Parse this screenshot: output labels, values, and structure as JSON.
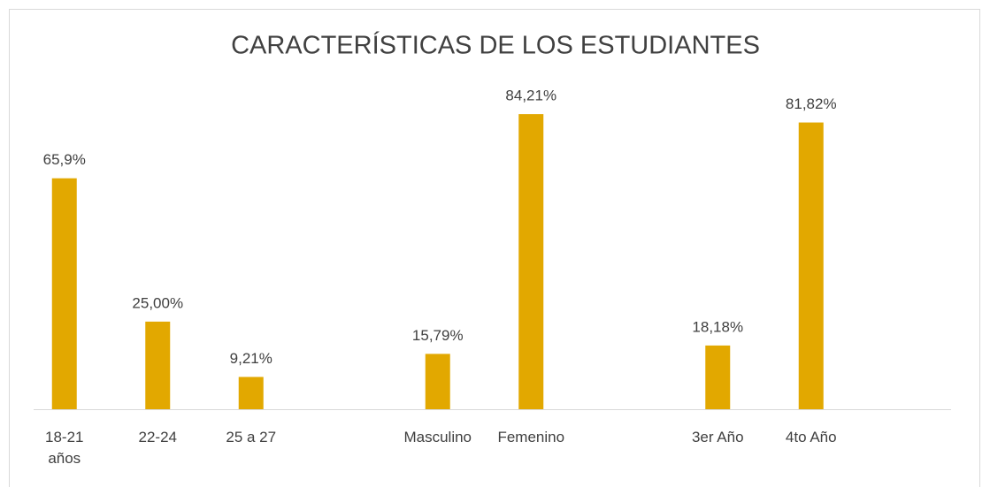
{
  "chart_data": {
    "type": "bar",
    "title": "CARACTERÍSTICAS DE LOS ESTUDIANTES",
    "categories": [
      "18-21 años",
      "22-24",
      "25 a 27",
      null,
      "Masculino",
      "Femenino",
      null,
      "3er Año",
      "4to Año",
      null
    ],
    "values": [
      65.9,
      25.0,
      9.21,
      null,
      15.79,
      84.21,
      null,
      18.18,
      81.82,
      null
    ],
    "value_labels": [
      "65,9%",
      "25,00%",
      "9,21%",
      null,
      "15,79%",
      "84,21%",
      null,
      "18,18%",
      "81,82%",
      null
    ],
    "color": "#e2a800",
    "ylim": [
      0,
      100
    ]
  }
}
